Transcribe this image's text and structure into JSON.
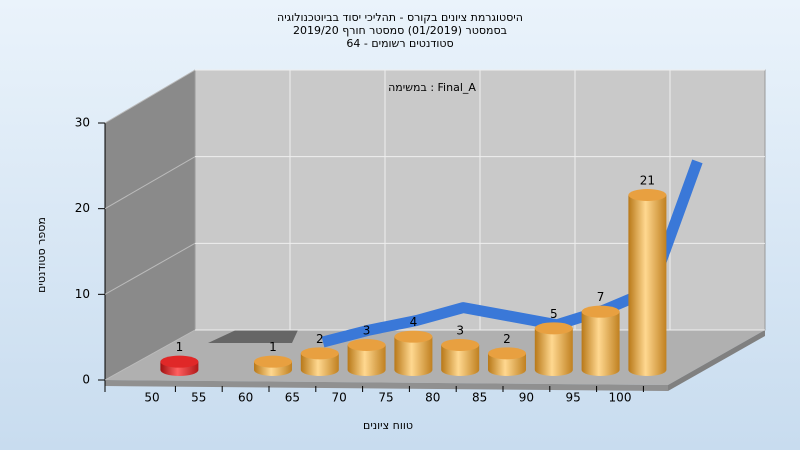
{
  "chart_data": {
    "type": "bar3d",
    "title": "היסטוגרמת ציונים בקורס - תהליכי יסוד בביוטכנולוגיה",
    "subtitle": "בסמסטר  (01/2019)  סמסטר חורף 2019/20",
    "subtitle2": "סטודנטים רשומים - 64",
    "annotation": "במשימה : Final_A",
    "y_label": "מספר סטודנטים",
    "x_label": "טווח ציונים",
    "categories": [
      "50",
      "55",
      "60",
      "65",
      "70",
      "75",
      "80",
      "85",
      "90",
      "95",
      "100"
    ],
    "values": [
      1,
      null,
      1,
      2,
      3,
      4,
      3,
      2,
      5,
      7,
      21
    ],
    "colors": [
      "#e02828",
      "#e8a040",
      "#e8a040",
      "#e8a040",
      "#e8a040",
      "#e8a040",
      "#e8a040",
      "#e8a040",
      "#e8a040",
      "#e8a040",
      "#e8a040"
    ],
    "trend": {
      "color": "#3a78d8",
      "values": [
        null,
        null,
        0,
        1.4,
        2.5,
        4,
        3,
        2,
        3.7,
        6,
        21
      ]
    },
    "ylim": [
      0,
      30
    ],
    "yticks": [
      0,
      10,
      20,
      30
    ],
    "grid": true
  }
}
